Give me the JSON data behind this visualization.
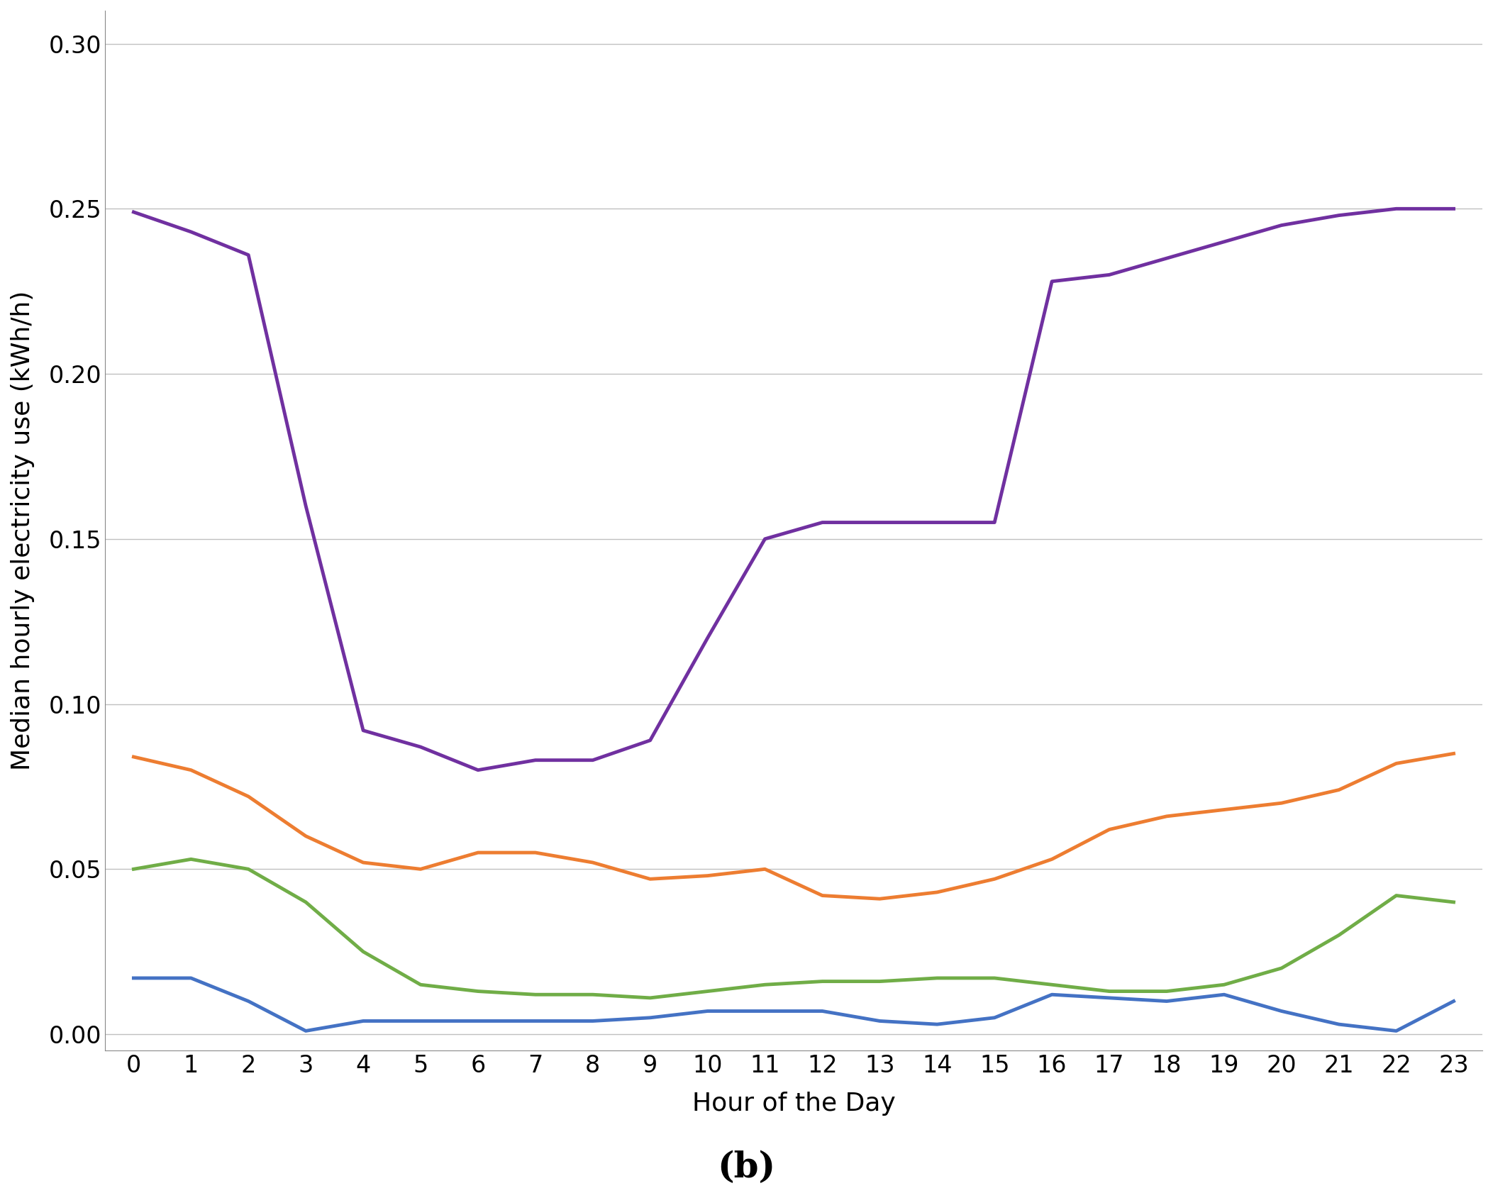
{
  "hours": [
    0,
    1,
    2,
    3,
    4,
    5,
    6,
    7,
    8,
    9,
    10,
    11,
    12,
    13,
    14,
    15,
    16,
    17,
    18,
    19,
    20,
    21,
    22,
    23
  ],
  "purple": [
    0.249,
    0.243,
    0.236,
    0.16,
    0.092,
    0.087,
    0.08,
    0.083,
    0.083,
    0.089,
    0.12,
    0.15,
    0.155,
    0.155,
    0.155,
    0.155,
    0.228,
    0.23,
    0.235,
    0.24,
    0.245,
    0.248,
    0.25,
    0.25
  ],
  "orange": [
    0.084,
    0.08,
    0.072,
    0.06,
    0.052,
    0.05,
    0.055,
    0.055,
    0.052,
    0.047,
    0.048,
    0.05,
    0.042,
    0.041,
    0.043,
    0.047,
    0.053,
    0.062,
    0.066,
    0.068,
    0.07,
    0.074,
    0.082,
    0.085
  ],
  "green": [
    0.05,
    0.053,
    0.05,
    0.04,
    0.025,
    0.015,
    0.013,
    0.012,
    0.012,
    0.011,
    0.013,
    0.015,
    0.016,
    0.016,
    0.017,
    0.017,
    0.015,
    0.013,
    0.013,
    0.015,
    0.02,
    0.03,
    0.042,
    0.04
  ],
  "blue": [
    0.017,
    0.017,
    0.01,
    0.001,
    0.004,
    0.004,
    0.004,
    0.004,
    0.004,
    0.005,
    0.007,
    0.007,
    0.007,
    0.004,
    0.003,
    0.005,
    0.012,
    0.011,
    0.01,
    0.012,
    0.007,
    0.003,
    0.001,
    0.01
  ],
  "purple_color": "#7030A0",
  "orange_color": "#ED7D31",
  "green_color": "#70AD47",
  "blue_color": "#4472C4",
  "ylabel": "Median hourly electricity use (kWh/h)",
  "xlabel": "Hour of the Day",
  "caption": "(b)",
  "ylim": [
    -0.005,
    0.31
  ],
  "yticks": [
    0.0,
    0.05,
    0.1,
    0.15,
    0.2,
    0.25,
    0.3
  ],
  "linewidth": 3.5,
  "background_color": "#FFFFFF",
  "grid_color": "#C0C0C0",
  "title_fontsize": 28,
  "label_fontsize": 26,
  "tick_fontsize": 24,
  "caption_fontsize": 36
}
